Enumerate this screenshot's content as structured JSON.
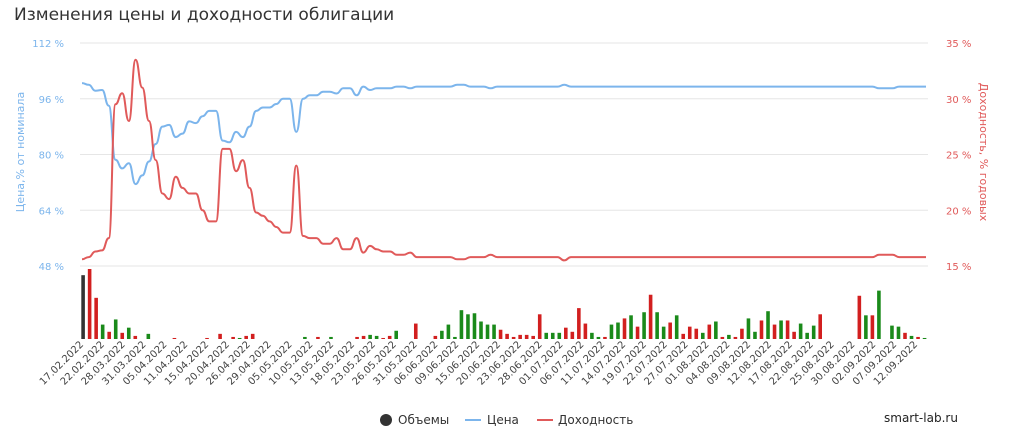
{
  "title": "Изменения цены и доходности облигации",
  "source": "smart-lab.ru",
  "colors": {
    "price": "#7cb5ec",
    "yield": "#e05a5a",
    "volume_up": "#1a8a1a",
    "volume_down": "#d21f1f",
    "volume_neutral": "#333333",
    "left_axis": "#7cb5ec",
    "right_axis": "#e05a5a"
  },
  "legend": [
    {
      "label": "Объемы",
      "marker": "circle",
      "color": "#333333"
    },
    {
      "label": "Цена",
      "marker": "line",
      "color": "#7cb5ec"
    },
    {
      "label": "Доходность",
      "marker": "line",
      "color": "#e05a5a"
    }
  ],
  "chart_data": {
    "type": "line",
    "y_left": {
      "label": "Цена,% от номинала",
      "ticks": [
        "112 %",
        "96 %",
        "80 %",
        "64 %",
        "48 %"
      ],
      "range": [
        48,
        112
      ]
    },
    "y_right": {
      "label": "Доходность, % годовых",
      "ticks": [
        "35 %",
        "30 %",
        "25 %",
        "20 %",
        "15 %"
      ],
      "range": [
        15,
        35
      ]
    },
    "x_ticks": [
      "17.02.2022",
      "22.02.2022",
      "28.03.2022",
      "31.03.2022",
      "05.04.2022",
      "11.04.2022",
      "15.04.2022",
      "20.04.2022",
      "26.04.2022",
      "29.04.2022",
      "05.05.2022",
      "10.05.2022",
      "13.05.2022",
      "18.05.2022",
      "23.05.2022",
      "26.05.2022",
      "31.05.2022",
      "06.06.2022",
      "09.06.2022",
      "15.06.2022",
      "20.06.2022",
      "23.06.2022",
      "28.06.2022",
      "01.07.2022",
      "06.07.2022",
      "11.07.2022",
      "14.07.2022",
      "19.07.2022",
      "22.07.2022",
      "27.07.2022",
      "01.08.2022",
      "04.08.2022",
      "09.08.2022",
      "12.08.2022",
      "17.08.2022",
      "22.08.2022",
      "25.08.2022",
      "30.08.2022",
      "02.09.2022",
      "07.09.2022",
      "12.09.2022"
    ],
    "series": [
      {
        "name": "Цена",
        "axis": "left",
        "values": [
          100.5,
          100.0,
          98.3,
          98.5,
          94.0,
          78.5,
          76.0,
          77.5,
          71.5,
          74.0,
          78.0,
          83.0,
          88.0,
          88.5,
          85.0,
          86.0,
          89.5,
          89.0,
          91.0,
          92.5,
          92.5,
          84.0,
          83.5,
          86.5,
          85.0,
          88.0,
          92.5,
          93.5,
          93.5,
          94.5,
          96.0,
          96.0,
          86.5,
          96.0,
          97.0,
          97.0,
          98.0,
          98.0,
          97.5,
          99.0,
          99.0,
          97.0,
          99.5,
          98.5,
          99.0,
          99.0,
          99.0,
          99.5,
          99.5,
          99.0,
          99.5,
          99.5,
          99.5,
          99.5,
          99.5,
          99.5,
          100.0,
          100.0,
          99.5,
          99.5,
          99.5,
          99.0,
          99.5,
          99.5,
          99.5,
          99.5,
          99.5,
          99.5,
          99.5,
          99.5,
          99.5,
          99.5,
          100.0,
          99.5,
          99.5,
          99.5,
          99.5,
          99.5,
          99.5,
          99.5,
          99.5,
          99.5,
          99.5,
          99.5,
          99.5,
          99.5,
          99.5,
          99.5,
          99.5,
          99.5,
          99.5,
          99.5,
          99.5,
          99.5,
          99.5,
          99.5,
          99.5,
          99.5,
          99.5,
          99.5,
          99.5,
          99.5,
          99.5,
          99.5,
          99.5,
          99.5,
          99.5,
          99.5,
          99.5,
          99.5,
          99.5,
          99.5,
          99.5,
          99.5,
          99.5,
          99.5,
          99.5,
          99.5,
          99.5,
          99.0,
          99.0,
          99.0,
          99.5,
          99.5,
          99.5,
          99.5,
          99.5
        ]
      },
      {
        "name": "Доходность",
        "axis": "right",
        "values": [
          15.6,
          15.8,
          16.3,
          16.4,
          17.5,
          29.5,
          30.5,
          28.0,
          33.5,
          31.0,
          28.0,
          24.5,
          21.5,
          21.0,
          23.0,
          22.0,
          21.5,
          21.5,
          20.0,
          19.0,
          19.0,
          25.5,
          25.5,
          23.5,
          24.5,
          22.0,
          19.8,
          19.5,
          19.0,
          18.5,
          18.0,
          18.0,
          24.0,
          17.7,
          17.5,
          17.5,
          17.0,
          17.0,
          17.5,
          16.5,
          16.5,
          17.5,
          16.2,
          16.8,
          16.5,
          16.3,
          16.3,
          16.0,
          16.0,
          16.2,
          15.8,
          15.8,
          15.8,
          15.8,
          15.8,
          15.8,
          15.6,
          15.6,
          15.8,
          15.8,
          15.8,
          16.0,
          15.8,
          15.8,
          15.8,
          15.8,
          15.8,
          15.8,
          15.8,
          15.8,
          15.8,
          15.8,
          15.5,
          15.8,
          15.8,
          15.8,
          15.8,
          15.8,
          15.8,
          15.8,
          15.8,
          15.8,
          15.8,
          15.8,
          15.8,
          15.8,
          15.8,
          15.8,
          15.8,
          15.8,
          15.8,
          15.8,
          15.8,
          15.8,
          15.8,
          15.8,
          15.8,
          15.8,
          15.8,
          15.8,
          15.8,
          15.8,
          15.8,
          15.8,
          15.8,
          15.8,
          15.8,
          15.8,
          15.8,
          15.8,
          15.8,
          15.8,
          15.8,
          15.8,
          15.8,
          15.8,
          15.8,
          15.8,
          15.8,
          16.0,
          16.0,
          16.0,
          15.8,
          15.8,
          15.8,
          15.8,
          15.8
        ]
      }
    ],
    "volumes": {
      "values": [
        62,
        68,
        40,
        14,
        7,
        19,
        6,
        11,
        3,
        0,
        5,
        0,
        0,
        0,
        1,
        0,
        0,
        0,
        0,
        1,
        0,
        5,
        0,
        2,
        1,
        3,
        5,
        0,
        0,
        0,
        0,
        0,
        0,
        0,
        2,
        0,
        2,
        0,
        2,
        0,
        0,
        0,
        2,
        3,
        4,
        3,
        1,
        3,
        8,
        0,
        0,
        15,
        0,
        0,
        3,
        8,
        14,
        2,
        28,
        24,
        25,
        17,
        14,
        14,
        9,
        5,
        2,
        4,
        4,
        3,
        24,
        6,
        6,
        6,
        11,
        7,
        30,
        15,
        6,
        2,
        2,
        14,
        16,
        20,
        23,
        12,
        26,
        43,
        26,
        12,
        16,
        23,
        5,
        12,
        10,
        6,
        14,
        17,
        2,
        4,
        2,
        10,
        20,
        7,
        18,
        27,
        14,
        18,
        18,
        7,
        15,
        6,
        13,
        24,
        0,
        0,
        0,
        0,
        0,
        42,
        23,
        23,
        47,
        0,
        13,
        12,
        6,
        3,
        2,
        1
      ],
      "colors": [
        "n",
        "d",
        "d",
        "u",
        "d",
        "u",
        "d",
        "u",
        "d",
        "u",
        "u",
        "u",
        "u",
        "u",
        "d",
        "u",
        "u",
        "u",
        "u",
        "d",
        "u",
        "d",
        "u",
        "d",
        "u",
        "d",
        "d",
        "u",
        "u",
        "u",
        "u",
        "u",
        "u",
        "u",
        "u",
        "u",
        "d",
        "u",
        "u",
        "u",
        "u",
        "u",
        "d",
        "d",
        "u",
        "u",
        "d",
        "d",
        "u",
        "u",
        "u",
        "d",
        "u",
        "u",
        "d",
        "u",
        "u",
        "u",
        "u",
        "u",
        "u",
        "u",
        "u",
        "u",
        "d",
        "d",
        "d",
        "d",
        "d",
        "d",
        "d",
        "u",
        "u",
        "u",
        "d",
        "d",
        "d",
        "d",
        "u",
        "u",
        "d",
        "u",
        "u",
        "d",
        "u",
        "d",
        "u",
        "d",
        "u",
        "u",
        "d",
        "u",
        "d",
        "d",
        "d",
        "u",
        "d",
        "u",
        "d",
        "u",
        "d",
        "d",
        "u",
        "u",
        "d",
        "u",
        "d",
        "u",
        "d",
        "d",
        "u",
        "u",
        "u",
        "d",
        "u",
        "u",
        "u",
        "u",
        "u",
        "d",
        "u",
        "d",
        "u",
        "u",
        "u",
        "u",
        "d",
        "u",
        "d",
        "u"
      ]
    },
    "grid": true,
    "legend_position": "bottom-center"
  }
}
